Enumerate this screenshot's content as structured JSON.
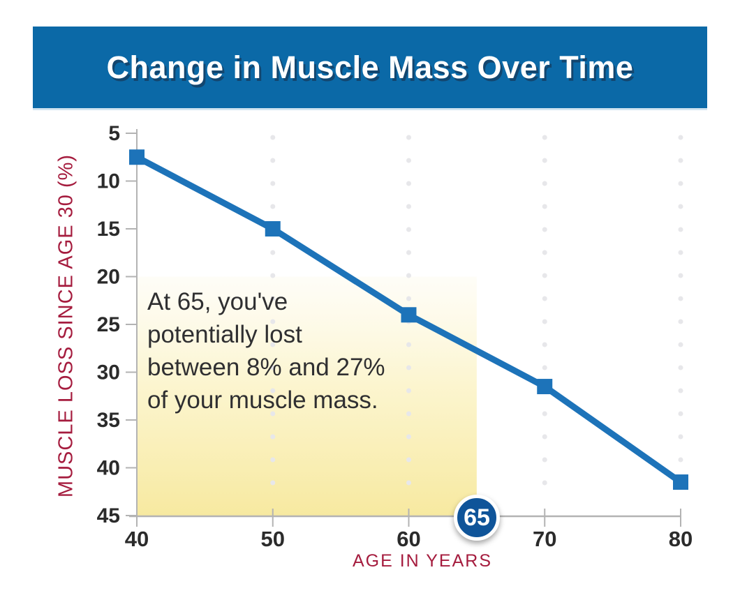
{
  "banner": {
    "title": "Change in Muscle Mass Over Time",
    "bg_color": "#0b69a7"
  },
  "chart_data": {
    "type": "line",
    "title": "Change in Muscle Mass Over Time",
    "xlabel": "AGE IN YEARS",
    "ylabel": "MUSCLE LOSS SINCE AGE 30 (%)",
    "x": [
      40,
      50,
      60,
      70,
      80
    ],
    "y": [
      7.5,
      15,
      24,
      31.5,
      41.5
    ],
    "x_ticks": [
      40,
      50,
      60,
      70,
      80
    ],
    "y_ticks": [
      5,
      10,
      15,
      20,
      25,
      30,
      35,
      40,
      45
    ],
    "xlim": [
      40,
      80
    ],
    "ylim": [
      5,
      45
    ],
    "y_axis_inverted": true,
    "grid": "vertical-dotted",
    "legend": "none",
    "line_color": "#1d73b9",
    "marker": "square",
    "highlight": {
      "x_range": [
        40,
        65
      ],
      "y_range": [
        20,
        45
      ],
      "fill": "yellow-gradient",
      "callout_label": "65"
    },
    "annotation": {
      "lines": [
        "At 65, you've",
        "potentially lost",
        "between 8% and 27%",
        "of your muscle mass."
      ]
    }
  },
  "colors": {
    "banner_blue": "#0b69a7",
    "line_blue": "#1d73b9",
    "badge_blue": "#0f5499",
    "crimson": "#a51c3e",
    "tick_text": "#2b2b2b",
    "axis_gray": "#b3b3b3",
    "grid_dot": "#e7e7ea",
    "highlight_yellow": "#f7e9a0"
  }
}
